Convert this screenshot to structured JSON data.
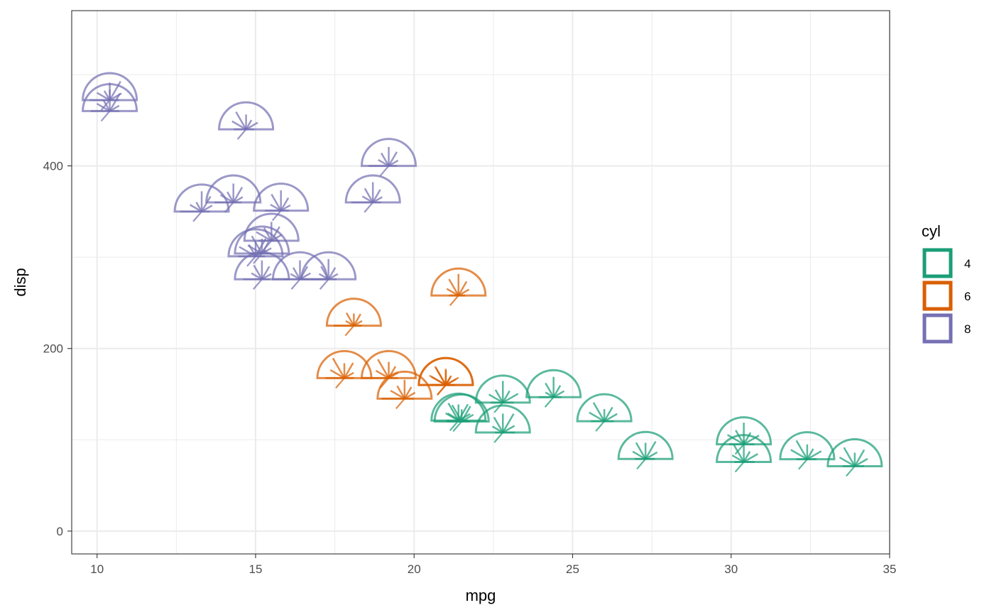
{
  "chart_data": {
    "type": "scatter",
    "glyph": "half-circle star (one ray per variable)",
    "x_variable": "mpg",
    "y_variable": "disp",
    "xlabel": "mpg",
    "ylabel": "disp",
    "xlim": [
      9.2,
      35.0
    ],
    "ylim": [
      -25,
      570
    ],
    "x_ticks": [
      10,
      15,
      20,
      25,
      30,
      35
    ],
    "y_ticks": [
      0,
      200,
      400
    ],
    "x_tick_labels": [
      "10",
      "15",
      "20",
      "25",
      "30",
      "35"
    ],
    "y_tick_labels": [
      "0",
      "200",
      "400"
    ],
    "grid": true,
    "legend": {
      "title": "cyl",
      "position": "right",
      "entries": [
        {
          "label": "4",
          "color": "#1b9e77"
        },
        {
          "label": "6",
          "color": "#d95f02"
        },
        {
          "label": "8",
          "color": "#7570b3"
        }
      ]
    },
    "points": [
      {
        "x": 21.0,
        "y": 160,
        "cyl": "6",
        "rays": [
          0.55,
          0.62,
          0.8,
          0.55,
          0.4,
          0.45,
          0.3
        ]
      },
      {
        "x": 21.0,
        "y": 160,
        "cyl": "6",
        "rays": [
          0.5,
          0.7,
          0.75,
          0.6,
          0.35,
          0.55,
          0.35
        ]
      },
      {
        "x": 22.8,
        "y": 108,
        "cyl": "4",
        "rays": [
          0.3,
          0.45,
          0.65,
          0.7,
          0.8,
          0.5,
          0.45
        ]
      },
      {
        "x": 21.4,
        "y": 258,
        "cyl": "6",
        "rays": [
          0.35,
          0.5,
          0.7,
          0.8,
          0.6,
          0.45,
          0.25
        ]
      },
      {
        "x": 18.7,
        "y": 360,
        "cyl": "8",
        "rays": [
          0.8,
          0.45,
          0.6,
          0.75,
          0.55,
          0.4,
          0.3
        ]
      },
      {
        "x": 18.1,
        "y": 225,
        "cyl": "6",
        "rays": [
          0.75,
          0.35,
          0.55,
          0.45,
          0.5,
          0.35,
          0.3
        ]
      },
      {
        "x": 14.3,
        "y": 360,
        "cyl": "8",
        "rays": [
          0.7,
          0.55,
          0.45,
          0.7,
          0.65,
          0.4,
          0.3
        ]
      },
      {
        "x": 24.4,
        "y": 146.7,
        "cyl": "4",
        "rays": [
          0.55,
          0.35,
          0.6,
          0.75,
          0.5,
          0.45,
          0.3
        ]
      },
      {
        "x": 22.8,
        "y": 140.8,
        "cyl": "4",
        "rays": [
          0.45,
          0.6,
          0.55,
          0.8,
          0.5,
          0.65,
          0.4
        ]
      },
      {
        "x": 19.2,
        "y": 167.6,
        "cyl": "6",
        "rays": [
          0.65,
          0.55,
          0.8,
          0.6,
          0.5,
          0.4,
          0.35
        ]
      },
      {
        "x": 17.8,
        "y": 167.6,
        "cyl": "6",
        "rays": [
          0.7,
          0.6,
          0.85,
          0.55,
          0.65,
          0.4,
          0.35
        ]
      },
      {
        "x": 16.4,
        "y": 275.8,
        "cyl": "8",
        "rays": [
          0.6,
          0.4,
          0.5,
          0.7,
          0.55,
          0.45,
          0.35
        ]
      },
      {
        "x": 17.3,
        "y": 275.8,
        "cyl": "8",
        "rays": [
          0.65,
          0.4,
          0.55,
          0.75,
          0.5,
          0.4,
          0.3
        ]
      },
      {
        "x": 15.2,
        "y": 275.8,
        "cyl": "8",
        "rays": [
          0.7,
          0.45,
          0.6,
          0.7,
          0.55,
          0.4,
          0.3
        ]
      },
      {
        "x": 10.4,
        "y": 472,
        "cyl": "8",
        "rays": [
          0.75,
          0.55,
          0.4,
          0.65,
          0.8,
          0.5,
          0.35
        ]
      },
      {
        "x": 10.4,
        "y": 460,
        "cyl": "8",
        "rays": [
          0.7,
          0.55,
          0.45,
          0.8,
          0.75,
          0.4,
          0.35
        ]
      },
      {
        "x": 14.7,
        "y": 440,
        "cyl": "8",
        "rays": [
          0.45,
          0.6,
          0.75,
          0.55,
          0.4,
          0.5,
          0.3
        ]
      },
      {
        "x": 32.4,
        "y": 78.7,
        "cyl": "4",
        "rays": [
          0.4,
          0.7,
          0.8,
          0.55,
          0.45,
          0.6,
          0.35
        ]
      },
      {
        "x": 30.4,
        "y": 75.7,
        "cyl": "4",
        "rays": [
          0.35,
          0.5,
          0.75,
          0.8,
          0.45,
          0.6,
          0.4
        ]
      },
      {
        "x": 33.9,
        "y": 71.1,
        "cyl": "4",
        "rays": [
          0.45,
          0.65,
          0.8,
          0.5,
          0.7,
          0.55,
          0.35
        ]
      },
      {
        "x": 21.5,
        "y": 120.1,
        "cyl": "4",
        "rays": [
          0.55,
          0.6,
          0.7,
          0.45,
          0.65,
          0.5,
          0.3
        ]
      },
      {
        "x": 15.5,
        "y": 318,
        "cyl": "8",
        "rays": [
          0.5,
          0.65,
          0.55,
          0.7,
          0.6,
          0.45,
          0.3
        ]
      },
      {
        "x": 15.2,
        "y": 304,
        "cyl": "8",
        "rays": [
          0.45,
          0.6,
          0.75,
          0.55,
          0.5,
          0.4,
          0.35
        ]
      },
      {
        "x": 13.3,
        "y": 350,
        "cyl": "8",
        "rays": [
          0.8,
          0.5,
          0.4,
          0.75,
          0.65,
          0.45,
          0.3
        ]
      },
      {
        "x": 19.2,
        "y": 400,
        "cyl": "8",
        "rays": [
          0.75,
          0.45,
          0.55,
          0.7,
          0.6,
          0.4,
          0.3
        ]
      },
      {
        "x": 27.3,
        "y": 79,
        "cyl": "4",
        "rays": [
          0.4,
          0.55,
          0.7,
          0.6,
          0.75,
          0.5,
          0.35
        ]
      },
      {
        "x": 26.0,
        "y": 120.3,
        "cyl": "4",
        "rays": [
          0.5,
          0.65,
          0.8,
          0.45,
          0.6,
          0.55,
          0.35
        ]
      },
      {
        "x": 30.4,
        "y": 95.1,
        "cyl": "4",
        "rays": [
          0.55,
          0.7,
          0.6,
          0.8,
          0.5,
          0.65,
          0.4
        ]
      },
      {
        "x": 15.8,
        "y": 351,
        "cyl": "8",
        "rays": [
          0.6,
          0.45,
          0.7,
          0.75,
          0.55,
          0.4,
          0.3
        ]
      },
      {
        "x": 19.7,
        "y": 145,
        "cyl": "6",
        "rays": [
          0.85,
          0.6,
          0.55,
          0.7,
          0.5,
          0.45,
          0.35
        ]
      },
      {
        "x": 15.0,
        "y": 301,
        "cyl": "8",
        "rays": [
          0.65,
          0.7,
          0.5,
          0.55,
          0.75,
          0.45,
          0.35
        ]
      },
      {
        "x": 21.4,
        "y": 121,
        "cyl": "4",
        "rays": [
          0.45,
          0.55,
          0.75,
          0.6,
          0.7,
          0.5,
          0.35
        ]
      }
    ]
  }
}
